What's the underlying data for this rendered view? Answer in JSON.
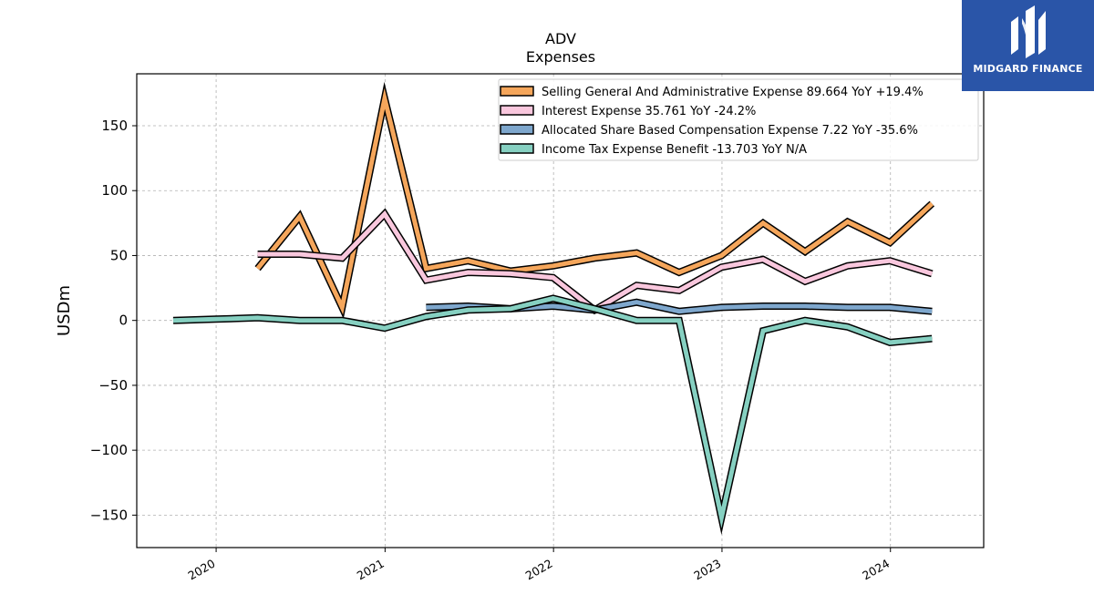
{
  "brand": {
    "name": "MIDGARD FINANCE",
    "logo_color": "#2a55a8"
  },
  "chart_data": {
    "type": "line",
    "title": "ADV",
    "subtitle": "Expenses",
    "ylabel": "USDm",
    "xlabel": "",
    "ylim": [
      -175,
      190
    ],
    "xlim": [
      "2019-07-13",
      "2024-07-21"
    ],
    "yticks": [
      150,
      100,
      50,
      0,
      -50,
      -100,
      -150
    ],
    "ytick_labels": [
      "150",
      "100",
      "50",
      "0",
      "−50",
      "−100",
      "−150"
    ],
    "xticks": [
      "2020",
      "2021",
      "2022",
      "2023",
      "2024"
    ],
    "grid": true,
    "legend_position": "top-right",
    "series": [
      {
        "name": "Selling General And Administrative Expense  89.664 YoY +19.4%",
        "color": "#f5a65b",
        "x": [
          "2020-03-31",
          "2020-06-30",
          "2020-09-30",
          "2020-12-31",
          "2021-03-31",
          "2021-06-30",
          "2021-09-30",
          "2021-12-31",
          "2022-03-31",
          "2022-06-30",
          "2022-09-30",
          "2022-12-31",
          "2023-03-31",
          "2023-06-30",
          "2023-09-30",
          "2023-12-31",
          "2024-03-31"
        ],
        "values": [
          40,
          80,
          10,
          171,
          40,
          46,
          38,
          42,
          48,
          52,
          37,
          50,
          75,
          53,
          76,
          60,
          90
        ]
      },
      {
        "name": "Interest Expense  35.761 YoY -24.2%",
        "color": "#f9c7dd",
        "x": [
          "2020-03-31",
          "2020-06-30",
          "2020-09-30",
          "2020-12-31",
          "2021-03-31",
          "2021-06-30",
          "2021-09-30",
          "2021-12-31",
          "2022-03-31",
          "2022-06-30",
          "2022-09-30",
          "2022-12-31",
          "2023-03-31",
          "2023-06-30",
          "2023-09-30",
          "2023-12-31",
          "2024-03-31"
        ],
        "values": [
          51,
          51,
          48,
          82,
          31,
          37,
          36,
          33,
          8,
          27,
          23,
          41,
          47,
          30,
          42,
          46,
          36
        ]
      },
      {
        "name": "Allocated Share Based Compensation Expense  7.22 YoY -35.6%",
        "color": "#7ea7cd",
        "x": [
          "2021-03-31",
          "2021-06-30",
          "2021-09-30",
          "2021-12-31",
          "2022-03-31",
          "2022-06-30",
          "2022-09-30",
          "2022-12-31",
          "2023-03-31",
          "2023-06-30",
          "2023-09-30",
          "2023-12-31",
          "2024-03-31"
        ],
        "values": [
          10,
          11,
          9,
          11,
          8,
          14,
          7,
          10,
          11,
          11,
          10,
          10,
          7
        ]
      },
      {
        "name": "Income Tax Expense Benefit  -13.703 YoY N/A",
        "color": "#86d0c1",
        "x": [
          "2019-09-30",
          "2019-12-31",
          "2020-03-31",
          "2020-06-30",
          "2020-09-30",
          "2020-12-31",
          "2021-03-31",
          "2021-06-30",
          "2021-09-30",
          "2021-12-31",
          "2022-03-31",
          "2022-06-30",
          "2022-09-30",
          "2022-12-31",
          "2023-03-31",
          "2023-06-30",
          "2023-09-30",
          "2023-12-31",
          "2024-03-31"
        ],
        "values": [
          0,
          1,
          2,
          0,
          0,
          -6,
          3,
          8,
          9,
          17,
          9,
          0,
          0,
          -152,
          -8,
          0,
          -5,
          -17,
          -14
        ]
      }
    ]
  }
}
